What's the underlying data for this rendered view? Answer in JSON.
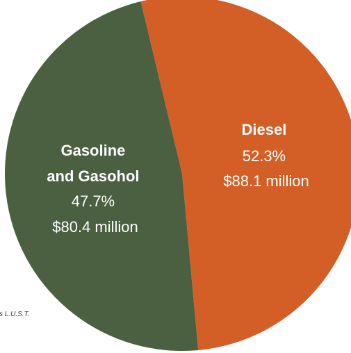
{
  "chart_data": {
    "type": "pie",
    "slices": [
      {
        "label_lines": [
          "Diesel"
        ],
        "percent_text": "52.3%",
        "amount_text": "$88.1 million",
        "value": 52.3,
        "color": "#D35F27"
      },
      {
        "label_lines": [
          "Gasoline",
          "and Gasohol"
        ],
        "percent_text": "47.7%",
        "amount_text": "$80.4 million",
        "value": 47.7,
        "color": "#4A6040"
      }
    ],
    "legend": "none"
  },
  "footnote": "s L.U.S.T."
}
